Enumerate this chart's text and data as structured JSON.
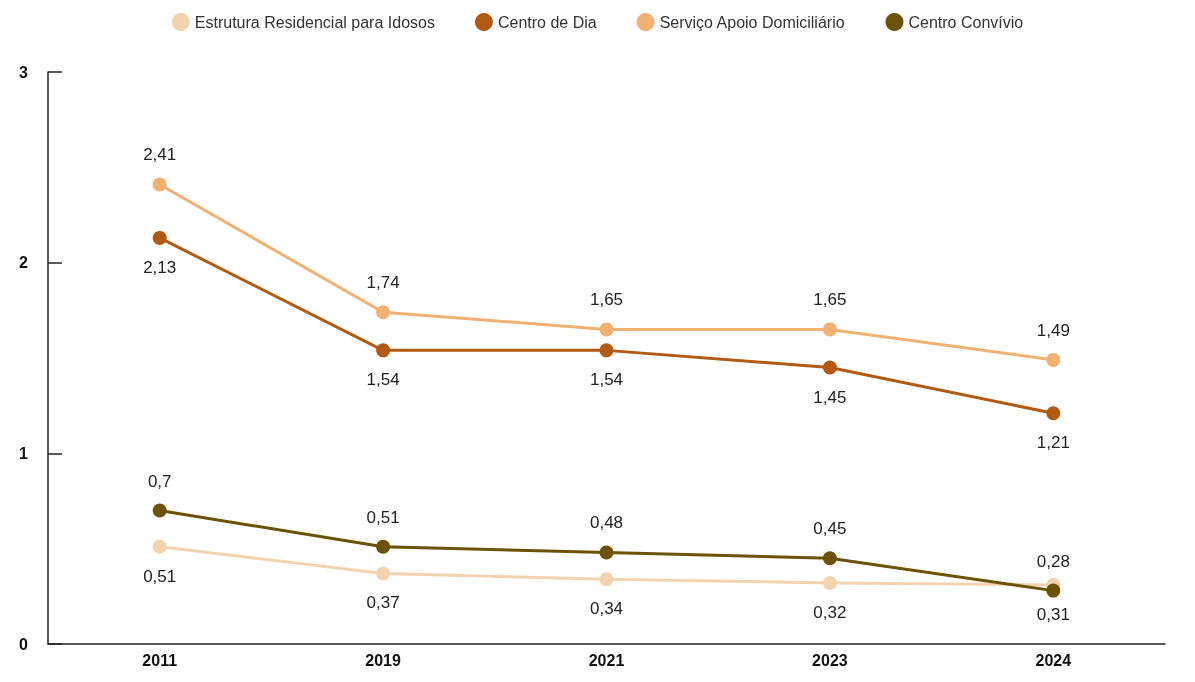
{
  "chart_data": {
    "type": "line",
    "categories": [
      "2011",
      "2019",
      "2021",
      "2023",
      "2024"
    ],
    "series": [
      {
        "name": "Estrutura Residencial para Idosos",
        "color": "#f2d3b0",
        "values": [
          0.51,
          0.37,
          0.34,
          0.32,
          0.31
        ],
        "value_labels": [
          "0,51",
          "0,37",
          "0,34",
          "0,32",
          "0,31"
        ]
      },
      {
        "name": "Centro de Dia",
        "color": "#b35a12",
        "values": [
          2.13,
          1.54,
          1.54,
          1.45,
          1.21
        ],
        "value_labels": [
          "2,13",
          "1,54",
          "1,54",
          "1,45",
          "1,21"
        ]
      },
      {
        "name": "Serviço Apoio Domiciliário",
        "color": "#f0b172",
        "values": [
          2.41,
          1.74,
          1.65,
          1.65,
          1.49
        ],
        "value_labels": [
          "2,41",
          "1,74",
          "1,65",
          "1,65",
          "1,49"
        ]
      },
      {
        "name": "Centro Convívio",
        "color": "#6b5205",
        "values": [
          0.7,
          0.51,
          0.48,
          0.45,
          0.28
        ],
        "value_labels": [
          "0,7",
          "0,51",
          "0,48",
          "0,45",
          "0,28"
        ]
      }
    ],
    "ylim": [
      0,
      3
    ],
    "yticks": [
      0,
      1,
      2,
      3
    ],
    "grid": false,
    "legend": "top",
    "marker": "circle",
    "line_style": "solid"
  }
}
